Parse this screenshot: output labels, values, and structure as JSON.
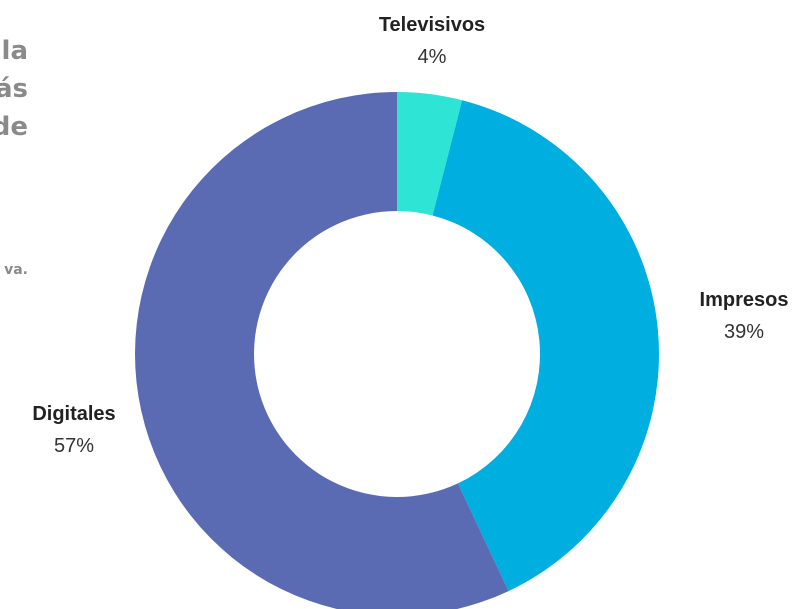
{
  "left_fragments": [
    "la",
    "ás",
    "de",
    "va."
  ],
  "colors": {
    "Televisivos": "#2ee4d4",
    "Impresos": "#00aee0",
    "Digitales": "#5a6ab3"
  },
  "chart_data": {
    "type": "pie",
    "donut": true,
    "title": "",
    "categories": [
      "Televisivos",
      "Impresos",
      "Digitales"
    ],
    "values": [
      4,
      39,
      57
    ],
    "value_labels": [
      "4%",
      "39%",
      "57%"
    ],
    "legend": "none"
  }
}
